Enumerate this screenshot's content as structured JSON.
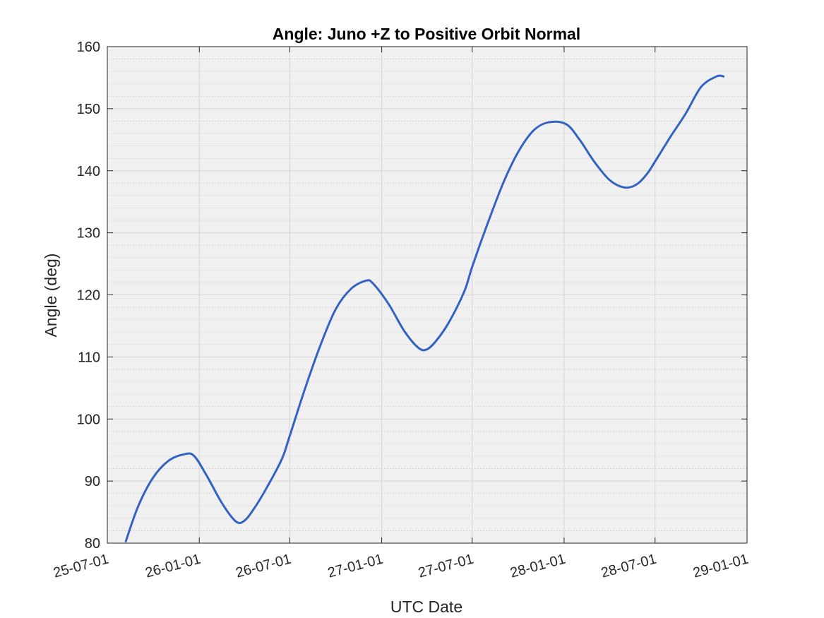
{
  "chart_data": {
    "type": "line",
    "title": "Angle: Juno +Z to Positive Orbit Normal",
    "xlabel": "UTC Date",
    "ylabel": "Angle (deg)",
    "x_type": "date",
    "xlim": [
      "2025-07-01",
      "2029-01-01"
    ],
    "ylim": [
      80,
      160
    ],
    "x_ticks": [
      {
        "value": "2025-07-01",
        "label": "25-07-01"
      },
      {
        "value": "2026-01-01",
        "label": "26-01-01"
      },
      {
        "value": "2026-07-01",
        "label": "26-07-01"
      },
      {
        "value": "2027-01-01",
        "label": "27-01-01"
      },
      {
        "value": "2027-07-01",
        "label": "27-07-01"
      },
      {
        "value": "2028-01-01",
        "label": "28-01-01"
      },
      {
        "value": "2028-07-01",
        "label": "28-07-01"
      },
      {
        "value": "2029-01-01",
        "label": "29-01-01"
      }
    ],
    "y_ticks": [
      80,
      90,
      100,
      110,
      120,
      130,
      140,
      150,
      160
    ],
    "y_minor_step": 2,
    "grid": true,
    "minor_grid": true,
    "legend": "none",
    "series": [
      {
        "color": "#3462c4",
        "x": [
          "2025-08-07",
          "2025-09-01",
          "2025-10-01",
          "2025-11-01",
          "2025-12-01",
          "2025-12-21",
          "2026-01-15",
          "2026-02-15",
          "2026-03-15",
          "2026-04-01",
          "2026-04-20",
          "2026-05-15",
          "2026-06-15",
          "2026-07-01",
          "2026-08-01",
          "2026-09-01",
          "2026-10-01",
          "2026-11-01",
          "2026-12-01",
          "2026-12-15",
          "2027-01-15",
          "2027-02-15",
          "2027-03-15",
          "2027-04-01",
          "2027-04-20",
          "2027-05-15",
          "2027-06-15",
          "2027-07-01",
          "2027-08-01",
          "2027-09-01",
          "2027-10-01",
          "2027-11-01",
          "2027-12-01",
          "2028-01-05",
          "2028-02-01",
          "2028-03-01",
          "2028-04-01",
          "2028-05-01",
          "2028-05-25",
          "2028-06-15",
          "2028-07-01",
          "2028-08-01",
          "2028-09-01",
          "2028-10-01",
          "2028-11-01",
          "2028-11-15"
        ],
        "values": [
          80.3,
          86.0,
          90.6,
          93.3,
          94.3,
          94.1,
          91.0,
          86.5,
          83.5,
          83.6,
          85.5,
          88.8,
          93.5,
          97.3,
          105.0,
          112.0,
          117.7,
          121.0,
          122.3,
          121.8,
          118.5,
          114.2,
          111.5,
          111.2,
          112.6,
          115.5,
          120.5,
          124.5,
          131.5,
          138.0,
          143.0,
          146.5,
          147.8,
          147.5,
          145.0,
          141.5,
          138.5,
          137.3,
          137.8,
          139.5,
          141.5,
          145.5,
          149.3,
          153.5,
          155.2,
          155.2
        ]
      }
    ]
  }
}
